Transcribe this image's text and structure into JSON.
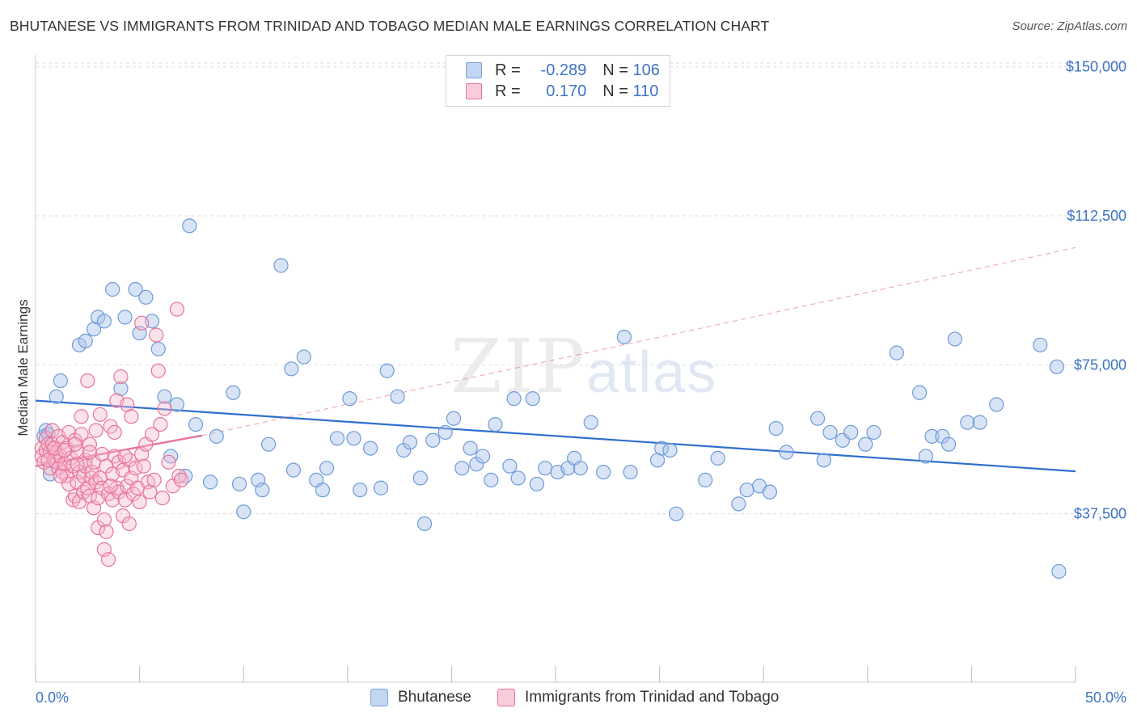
{
  "title": "BHUTANESE VS IMMIGRANTS FROM TRINIDAD AND TOBAGO MEDIAN MALE EARNINGS CORRELATION CHART",
  "source": "Source: ZipAtlas.com",
  "watermark": {
    "main": "ZIP",
    "light": "atlas"
  },
  "colors": {
    "blue": "#3d73c5",
    "blue_fill": "#a9c4ea",
    "blue_line": "#2f6fce",
    "pink": "#e8739a",
    "pink_fill": "#f5b9cc",
    "grid": "#dddddd",
    "axis_text": "#3d73c5"
  },
  "legend": {
    "rows": [
      {
        "r_label": "R =",
        "r_value": "-0.289",
        "n_label": "N =",
        "n_value": "106",
        "color": "#a9c4ea",
        "border": "#7aa3dd"
      },
      {
        "r_label": "R =",
        "r_value": "0.170",
        "n_label": "N =",
        "n_value": "110",
        "color": "#f5b9cc",
        "border": "#e8739a"
      }
    ]
  },
  "bottom_legend": [
    {
      "label": "Bhutanese",
      "color": "#a9c4ea",
      "border": "#7aa3dd"
    },
    {
      "label": "Immigrants from Trinidad and Tobago",
      "color": "#f5b9cc",
      "border": "#e8739a"
    }
  ],
  "chart_data": {
    "type": "scatter",
    "title": "BHUTANESE VS IMMIGRANTS FROM TRINIDAD AND TOBAGO MEDIAN MALE EARNINGS CORRELATION CHART",
    "xlabel": "",
    "ylabel": "Median Male Earnings",
    "xlim": [
      0,
      50
    ],
    "ylim": [
      0,
      153000
    ],
    "x_tick_labels": [
      "0.0%",
      "50.0%"
    ],
    "y_ticks": [
      37500,
      75000,
      112500,
      150000
    ],
    "y_tick_labels": [
      "$37,500",
      "$75,000",
      "$112,500",
      "$150,000"
    ],
    "series": [
      {
        "name": "Bhutanese",
        "r": -0.289,
        "n": 106,
        "trend": {
          "x0": 0,
          "y0": 66000,
          "x1": 50,
          "y1": 48200
        },
        "points": [
          [
            0.4,
            57000
          ],
          [
            0.5,
            58500
          ],
          [
            0.6,
            57500
          ],
          [
            0.7,
            47500
          ],
          [
            1.0,
            67000
          ],
          [
            1.2,
            71000
          ],
          [
            2.1,
            80000
          ],
          [
            2.4,
            81000
          ],
          [
            2.8,
            84000
          ],
          [
            3.0,
            87000
          ],
          [
            3.3,
            86000
          ],
          [
            3.7,
            94000
          ],
          [
            4.1,
            69000
          ],
          [
            4.3,
            87000
          ],
          [
            4.8,
            94000
          ],
          [
            5.0,
            83000
          ],
          [
            5.3,
            92000
          ],
          [
            5.6,
            86000
          ],
          [
            5.9,
            79000
          ],
          [
            6.2,
            67000
          ],
          [
            6.8,
            65000
          ],
          [
            6.5,
            52000
          ],
          [
            7.2,
            47000
          ],
          [
            7.4,
            110000
          ],
          [
            7.7,
            60000
          ],
          [
            8.4,
            45500
          ],
          [
            8.7,
            57000
          ],
          [
            9.5,
            68000
          ],
          [
            9.8,
            45000
          ],
          [
            10.0,
            38000
          ],
          [
            10.7,
            46000
          ],
          [
            10.9,
            43500
          ],
          [
            11.2,
            55000
          ],
          [
            11.8,
            100000
          ],
          [
            12.3,
            74000
          ],
          [
            12.4,
            48500
          ],
          [
            12.9,
            77000
          ],
          [
            13.5,
            46000
          ],
          [
            13.8,
            43500
          ],
          [
            14.0,
            49000
          ],
          [
            14.5,
            56500
          ],
          [
            15.1,
            66500
          ],
          [
            15.3,
            56500
          ],
          [
            15.6,
            43500
          ],
          [
            16.1,
            54000
          ],
          [
            16.6,
            44000
          ],
          [
            16.9,
            73500
          ],
          [
            17.4,
            67000
          ],
          [
            17.7,
            53500
          ],
          [
            18.0,
            55500
          ],
          [
            18.5,
            46500
          ],
          [
            18.7,
            35000
          ],
          [
            19.1,
            56000
          ],
          [
            19.7,
            58000
          ],
          [
            20.1,
            61500
          ],
          [
            20.5,
            49000
          ],
          [
            20.9,
            54000
          ],
          [
            21.2,
            50000
          ],
          [
            21.5,
            52000
          ],
          [
            21.9,
            46000
          ],
          [
            22.1,
            60000
          ],
          [
            22.8,
            49500
          ],
          [
            23.0,
            66500
          ],
          [
            23.2,
            46500
          ],
          [
            23.9,
            66500
          ],
          [
            24.1,
            45000
          ],
          [
            24.5,
            49000
          ],
          [
            25.1,
            48000
          ],
          [
            25.6,
            49000
          ],
          [
            25.9,
            51500
          ],
          [
            26.2,
            49000
          ],
          [
            26.7,
            60500
          ],
          [
            27.3,
            48000
          ],
          [
            28.3,
            82000
          ],
          [
            28.6,
            48000
          ],
          [
            29.9,
            51000
          ],
          [
            30.1,
            54000
          ],
          [
            30.5,
            53500
          ],
          [
            30.8,
            37500
          ],
          [
            32.2,
            46000
          ],
          [
            32.8,
            51500
          ],
          [
            33.8,
            40000
          ],
          [
            34.2,
            43500
          ],
          [
            34.8,
            44500
          ],
          [
            35.3,
            43000
          ],
          [
            35.6,
            59000
          ],
          [
            36.1,
            53000
          ],
          [
            37.6,
            61500
          ],
          [
            37.9,
            51000
          ],
          [
            38.2,
            58000
          ],
          [
            38.8,
            56000
          ],
          [
            39.2,
            58000
          ],
          [
            39.9,
            55000
          ],
          [
            40.3,
            58000
          ],
          [
            41.4,
            78000
          ],
          [
            42.5,
            68000
          ],
          [
            42.8,
            52000
          ],
          [
            43.1,
            57000
          ],
          [
            43.6,
            57000
          ],
          [
            43.9,
            55000
          ],
          [
            44.2,
            81500
          ],
          [
            44.8,
            60500
          ],
          [
            45.4,
            60500
          ],
          [
            46.2,
            65000
          ],
          [
            48.3,
            80000
          ],
          [
            49.1,
            74500
          ],
          [
            49.2,
            23000
          ]
        ]
      },
      {
        "name": "Immigrants from Trinidad and Tobago",
        "r": 0.17,
        "n": 110,
        "trend": {
          "x0": 0,
          "y0": 49500,
          "x1": 8.0,
          "y1": 57200
        },
        "trend_ext": {
          "x0": 8.0,
          "y0": 57200,
          "x1": 50,
          "y1": 104500
        },
        "points": [
          [
            0.3,
            54000
          ],
          [
            0.3,
            52000
          ],
          [
            0.4,
            50500
          ],
          [
            0.5,
            53500
          ],
          [
            0.5,
            56500
          ],
          [
            0.6,
            55000
          ],
          [
            0.7,
            49000
          ],
          [
            0.7,
            53000
          ],
          [
            0.8,
            58500
          ],
          [
            0.8,
            55000
          ],
          [
            0.9,
            51000
          ],
          [
            1.0,
            50500
          ],
          [
            1.0,
            53000
          ],
          [
            1.1,
            57000
          ],
          [
            1.1,
            49000
          ],
          [
            1.2,
            52000
          ],
          [
            1.3,
            55500
          ],
          [
            1.3,
            48000
          ],
          [
            1.4,
            50000
          ],
          [
            1.5,
            54000
          ],
          [
            1.5,
            47000
          ],
          [
            1.6,
            58000
          ],
          [
            1.6,
            45000
          ],
          [
            1.7,
            51500
          ],
          [
            1.8,
            49500
          ],
          [
            1.8,
            41000
          ],
          [
            1.9,
            56000
          ],
          [
            1.9,
            42000
          ],
          [
            2.0,
            53000
          ],
          [
            2.0,
            45500
          ],
          [
            2.1,
            48000
          ],
          [
            2.1,
            40500
          ],
          [
            2.2,
            57500
          ],
          [
            2.2,
            62000
          ],
          [
            2.3,
            47000
          ],
          [
            2.3,
            43000
          ],
          [
            2.4,
            51000
          ],
          [
            2.4,
            49500
          ],
          [
            2.5,
            44000
          ],
          [
            2.5,
            71000
          ],
          [
            2.6,
            55000
          ],
          [
            2.6,
            42000
          ],
          [
            2.7,
            46500
          ],
          [
            2.7,
            48000
          ],
          [
            2.8,
            39000
          ],
          [
            2.8,
            50500
          ],
          [
            2.9,
            58500
          ],
          [
            2.9,
            45500
          ],
          [
            3.0,
            41500
          ],
          [
            3.0,
            34000
          ],
          [
            3.1,
            46500
          ],
          [
            3.1,
            62500
          ],
          [
            3.2,
            52500
          ],
          [
            3.2,
            44000
          ],
          [
            3.3,
            36000
          ],
          [
            3.3,
            28500
          ],
          [
            3.4,
            49500
          ],
          [
            3.4,
            33000
          ],
          [
            3.5,
            42500
          ],
          [
            3.5,
            26000
          ],
          [
            3.6,
            59500
          ],
          [
            3.7,
            47500
          ],
          [
            3.7,
            41000
          ],
          [
            3.8,
            52000
          ],
          [
            3.8,
            58000
          ],
          [
            3.9,
            44000
          ],
          [
            3.9,
            66000
          ],
          [
            4.0,
            50500
          ],
          [
            4.0,
            43000
          ],
          [
            4.1,
            72000
          ],
          [
            4.2,
            48500
          ],
          [
            4.2,
            37000
          ],
          [
            4.3,
            41000
          ],
          [
            4.4,
            44500
          ],
          [
            4.4,
            65000
          ],
          [
            4.5,
            51000
          ],
          [
            4.5,
            35000
          ],
          [
            4.6,
            46500
          ],
          [
            4.6,
            62000
          ],
          [
            4.7,
            42500
          ],
          [
            4.8,
            49000
          ],
          [
            4.9,
            44000
          ],
          [
            5.0,
            40500
          ],
          [
            5.1,
            52500
          ],
          [
            5.1,
            85500
          ],
          [
            5.2,
            49500
          ],
          [
            5.3,
            55000
          ],
          [
            5.4,
            45500
          ],
          [
            5.5,
            43000
          ],
          [
            5.6,
            57500
          ],
          [
            5.7,
            46000
          ],
          [
            5.8,
            82500
          ],
          [
            5.9,
            73500
          ],
          [
            6.0,
            60000
          ],
          [
            6.1,
            41500
          ],
          [
            6.2,
            64000
          ],
          [
            6.4,
            50500
          ],
          [
            6.6,
            44500
          ],
          [
            6.8,
            89000
          ],
          [
            6.9,
            47000
          ],
          [
            7.0,
            46000
          ],
          [
            1.9,
            55000
          ],
          [
            2.0,
            50000
          ],
          [
            0.9,
            54000
          ],
          [
            1.2,
            47000
          ],
          [
            0.6,
            51000
          ],
          [
            1.4,
            53500
          ],
          [
            2.6,
            53000
          ],
          [
            3.6,
            44500
          ],
          [
            4.3,
            52000
          ]
        ]
      }
    ]
  }
}
